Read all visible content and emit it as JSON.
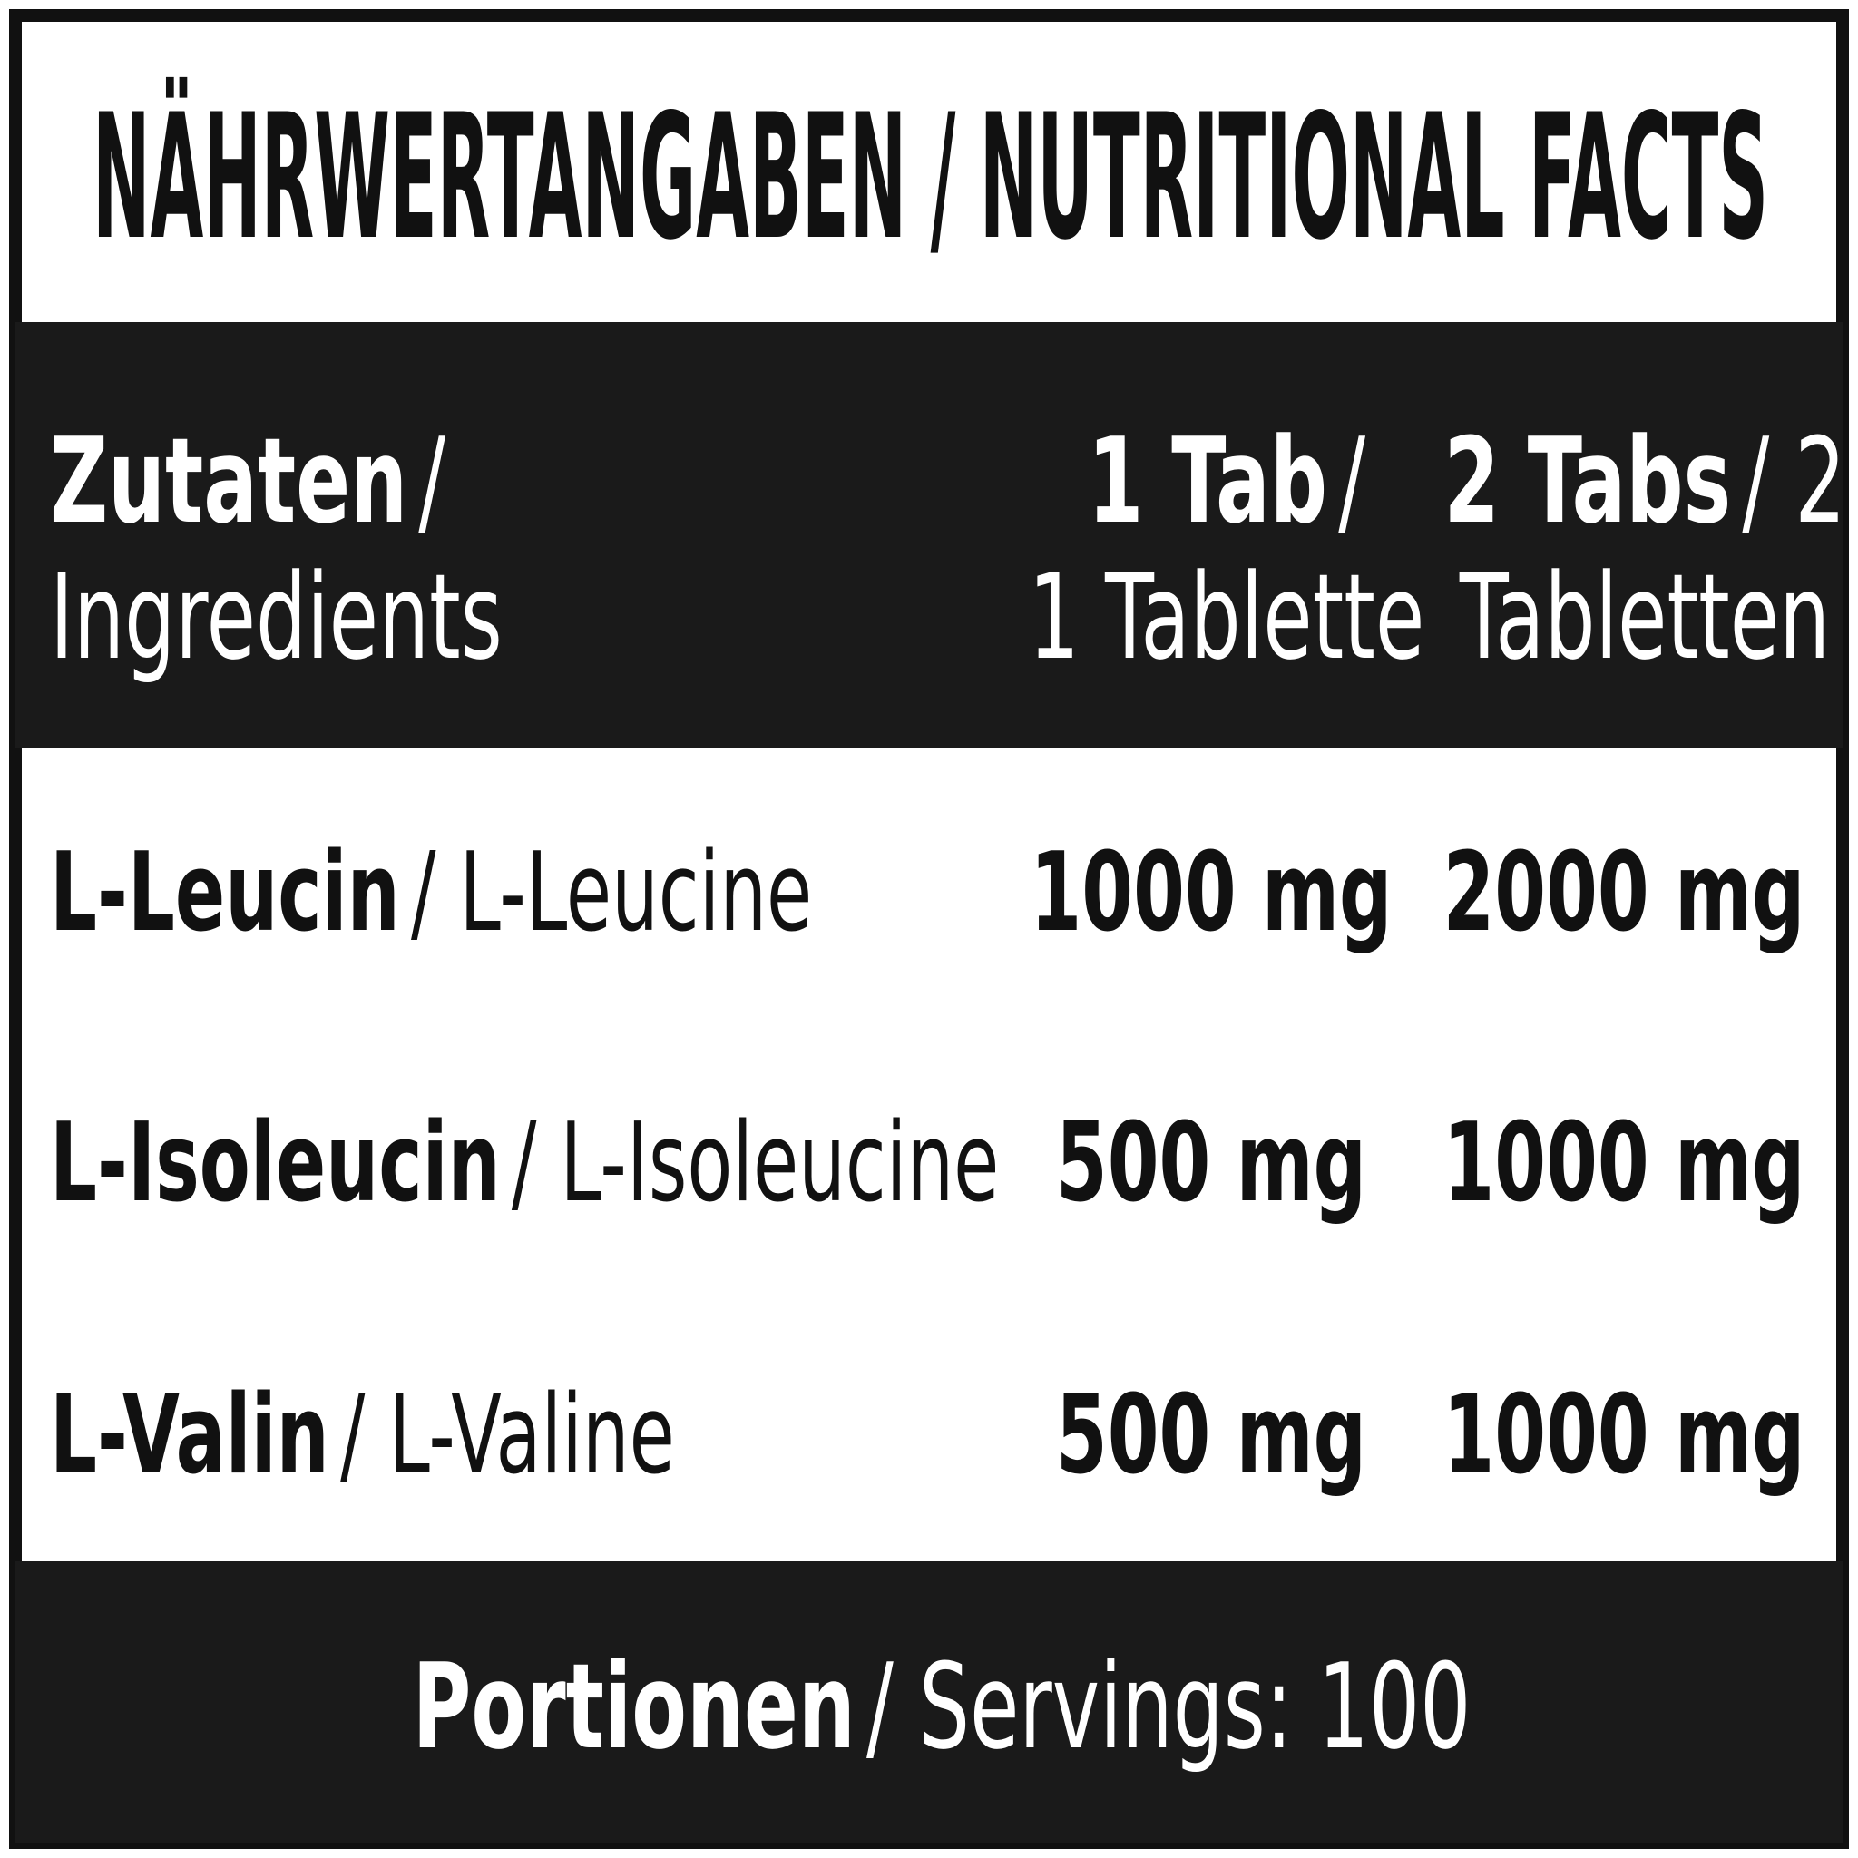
{
  "header": {
    "title": "NÄHRWERTANGABEN / NUTRITIONAL FACTS"
  },
  "table": {
    "columns": [
      {
        "bold": "Zutaten",
        "rest": "/",
        "line2": "Ingredients"
      },
      {
        "bold": "1 Tab",
        "rest": "/",
        "line2": "1 Tablette"
      },
      {
        "bold": "2 Tabs",
        "rest": "/ 2",
        "line2": "Tabletten"
      }
    ],
    "rows": [
      {
        "name_bold": "L-Leucin",
        "name_rest": "/ L-Leucine",
        "per_1": "1000 mg",
        "per_2": "2000 mg"
      },
      {
        "name_bold": "L-Isoleucin",
        "name_rest": "/ L-Isoleucine",
        "per_1": "500 mg",
        "per_2": "1000 mg"
      },
      {
        "name_bold": "L-Valin",
        "name_rest": "/ L-Valine",
        "per_1": "500 mg",
        "per_2": "1000 mg"
      }
    ]
  },
  "footer": {
    "bold": "Portionen",
    "rest": "/ Servings: 100"
  }
}
